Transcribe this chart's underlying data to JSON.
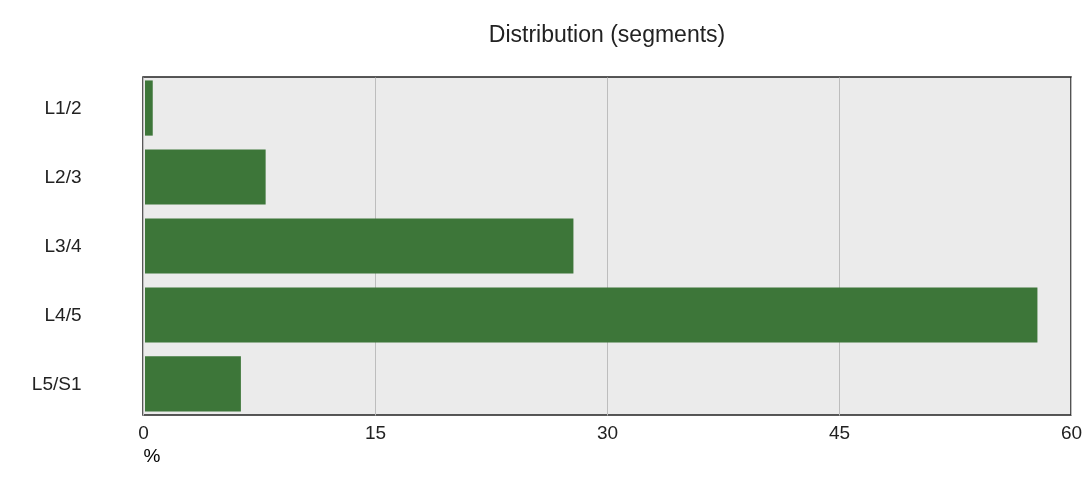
{
  "chart_data": {
    "type": "bar",
    "orientation": "horizontal",
    "title": "Distribution (segments)",
    "xlabel": "%",
    "categories": [
      "L1/2",
      "L2/3",
      "L3/4",
      "L4/5",
      "L5/S1"
    ],
    "values": [
      0.5,
      7.8,
      27.7,
      57.7,
      6.2
    ],
    "color": "#3d7639",
    "xlim": [
      0,
      60
    ],
    "xticks": [
      0,
      15,
      30,
      45,
      60
    ],
    "grid": "x"
  }
}
